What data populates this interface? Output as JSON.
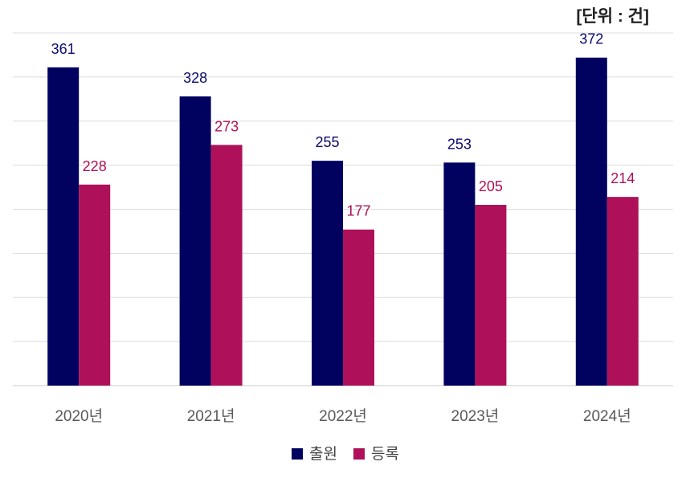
{
  "chart_data": {
    "type": "bar",
    "unit_label": "[단위 : 건]",
    "categories": [
      "2020년",
      "2021년",
      "2022년",
      "2023년",
      "2024년"
    ],
    "series": [
      {
        "name": "출원",
        "color": "#010160",
        "label_color": "#0a0a6e",
        "values": [
          361,
          328,
          255,
          253,
          372
        ]
      },
      {
        "name": "등록",
        "color": "#ae1159",
        "label_color": "#ae1159",
        "values": [
          228,
          273,
          177,
          205,
          214
        ]
      }
    ],
    "ylim": [
      0,
      400
    ],
    "grid": true,
    "y_tick_labels_shown": false,
    "legend_position": "bottom-center"
  }
}
